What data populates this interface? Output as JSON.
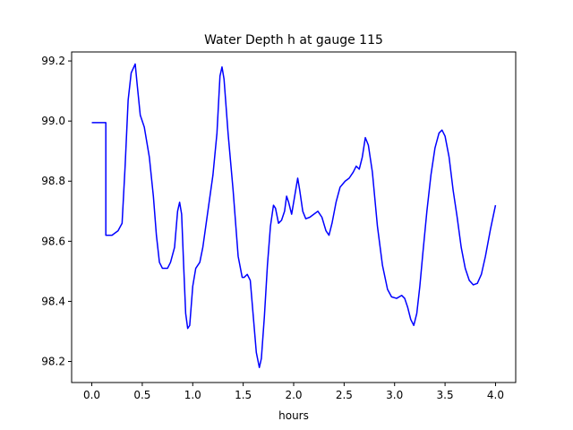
{
  "chart_data": {
    "type": "line",
    "title": "Water Depth h at gauge 115",
    "xlabel": "hours",
    "ylabel": "",
    "xlim": [
      -0.2,
      4.2
    ],
    "ylim": [
      98.13,
      99.23
    ],
    "x_ticks": [
      0.0,
      0.5,
      1.0,
      1.5,
      2.0,
      2.5,
      3.0,
      3.5,
      4.0
    ],
    "x_tick_labels": [
      "0.0",
      "0.5",
      "1.0",
      "1.5",
      "2.0",
      "2.5",
      "3.0",
      "3.5",
      "4.0"
    ],
    "y_ticks": [
      98.2,
      98.4,
      98.6,
      98.8,
      99.0,
      99.2
    ],
    "y_tick_labels": [
      "98.2",
      "98.4",
      "98.6",
      "98.8",
      "99.0",
      "99.2"
    ],
    "grid": false,
    "legend": "none",
    "series": [
      {
        "color": "#0000ff",
        "points": [
          [
            0.0,
            98.995
          ],
          [
            0.139,
            98.995
          ],
          [
            0.139,
            98.62
          ],
          [
            0.2,
            98.62
          ],
          [
            0.26,
            98.635
          ],
          [
            0.3,
            98.66
          ],
          [
            0.33,
            98.85
          ],
          [
            0.36,
            99.07
          ],
          [
            0.39,
            99.16
          ],
          [
            0.43,
            99.19
          ],
          [
            0.45,
            99.12
          ],
          [
            0.48,
            99.02
          ],
          [
            0.52,
            98.98
          ],
          [
            0.57,
            98.88
          ],
          [
            0.61,
            98.75
          ],
          [
            0.64,
            98.62
          ],
          [
            0.67,
            98.53
          ],
          [
            0.7,
            98.51
          ],
          [
            0.75,
            98.51
          ],
          [
            0.78,
            98.53
          ],
          [
            0.82,
            98.58
          ],
          [
            0.85,
            98.7
          ],
          [
            0.87,
            98.73
          ],
          [
            0.89,
            98.69
          ],
          [
            0.91,
            98.52
          ],
          [
            0.93,
            98.36
          ],
          [
            0.95,
            98.31
          ],
          [
            0.97,
            98.32
          ],
          [
            1.0,
            98.45
          ],
          [
            1.03,
            98.51
          ],
          [
            1.07,
            98.53
          ],
          [
            1.1,
            98.58
          ],
          [
            1.15,
            98.7
          ],
          [
            1.2,
            98.82
          ],
          [
            1.24,
            98.96
          ],
          [
            1.27,
            99.15
          ],
          [
            1.29,
            99.18
          ],
          [
            1.31,
            99.14
          ],
          [
            1.35,
            98.96
          ],
          [
            1.4,
            98.77
          ],
          [
            1.45,
            98.55
          ],
          [
            1.49,
            98.48
          ],
          [
            1.51,
            98.48
          ],
          [
            1.54,
            98.49
          ],
          [
            1.57,
            98.47
          ],
          [
            1.6,
            98.35
          ],
          [
            1.63,
            98.23
          ],
          [
            1.66,
            98.18
          ],
          [
            1.68,
            98.21
          ],
          [
            1.71,
            98.35
          ],
          [
            1.74,
            98.52
          ],
          [
            1.77,
            98.65
          ],
          [
            1.8,
            98.72
          ],
          [
            1.82,
            98.71
          ],
          [
            1.85,
            98.66
          ],
          [
            1.88,
            98.67
          ],
          [
            1.91,
            98.7
          ],
          [
            1.93,
            98.75
          ],
          [
            1.95,
            98.73
          ],
          [
            1.98,
            98.69
          ],
          [
            2.01,
            98.75
          ],
          [
            2.04,
            98.81
          ],
          [
            2.06,
            98.77
          ],
          [
            2.09,
            98.7
          ],
          [
            2.12,
            98.675
          ],
          [
            2.16,
            98.68
          ],
          [
            2.2,
            98.69
          ],
          [
            2.24,
            98.7
          ],
          [
            2.28,
            98.68
          ],
          [
            2.32,
            98.635
          ],
          [
            2.35,
            98.62
          ],
          [
            2.38,
            98.66
          ],
          [
            2.42,
            98.73
          ],
          [
            2.46,
            98.78
          ],
          [
            2.51,
            98.8
          ],
          [
            2.55,
            98.81
          ],
          [
            2.59,
            98.83
          ],
          [
            2.62,
            98.85
          ],
          [
            2.65,
            98.84
          ],
          [
            2.68,
            98.88
          ],
          [
            2.71,
            98.945
          ],
          [
            2.74,
            98.92
          ],
          [
            2.78,
            98.83
          ],
          [
            2.83,
            98.65
          ],
          [
            2.88,
            98.52
          ],
          [
            2.93,
            98.44
          ],
          [
            2.97,
            98.415
          ],
          [
            3.02,
            98.41
          ],
          [
            3.07,
            98.42
          ],
          [
            3.1,
            98.41
          ],
          [
            3.13,
            98.38
          ],
          [
            3.16,
            98.34
          ],
          [
            3.19,
            98.32
          ],
          [
            3.22,
            98.36
          ],
          [
            3.25,
            98.45
          ],
          [
            3.28,
            98.56
          ],
          [
            3.32,
            98.7
          ],
          [
            3.36,
            98.82
          ],
          [
            3.4,
            98.91
          ],
          [
            3.44,
            98.96
          ],
          [
            3.47,
            98.97
          ],
          [
            3.5,
            98.95
          ],
          [
            3.54,
            98.88
          ],
          [
            3.58,
            98.77
          ],
          [
            3.62,
            98.68
          ],
          [
            3.66,
            98.58
          ],
          [
            3.7,
            98.51
          ],
          [
            3.74,
            98.47
          ],
          [
            3.78,
            98.455
          ],
          [
            3.82,
            98.46
          ],
          [
            3.86,
            98.49
          ],
          [
            3.9,
            98.55
          ],
          [
            3.95,
            98.64
          ],
          [
            4.0,
            98.72
          ]
        ]
      }
    ]
  }
}
